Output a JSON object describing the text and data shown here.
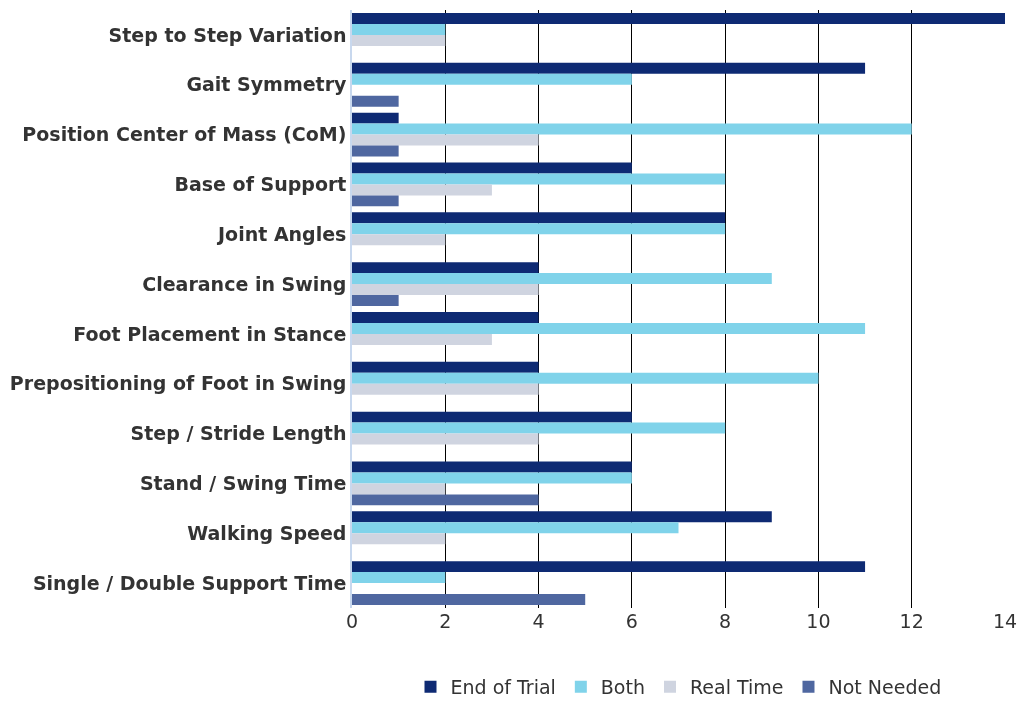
{
  "chart_data": {
    "type": "bar",
    "orientation": "horizontal",
    "categories": [
      "Step to Step Variation",
      "Gait Symmetry",
      "Position Center of Mass (CoM)",
      "Base of Support",
      "Joint Angles",
      "Clearance in Swing",
      "Foot Placement in Stance",
      "Prepositioning of Foot in Swing",
      "Step / Stride Length",
      "Stand / Swing Time",
      "Walking Speed",
      "Single / Double Support Time"
    ],
    "series": [
      {
        "name": "End of Trial",
        "color": "#0e2a73",
        "values": [
          14,
          11,
          1,
          6,
          8,
          4,
          4,
          4,
          6,
          6,
          9,
          11
        ]
      },
      {
        "name": "Both",
        "color": "#80d3ea",
        "values": [
          2,
          6,
          12,
          8,
          8,
          9,
          11,
          10,
          8,
          6,
          7,
          2
        ]
      },
      {
        "name": "Real Time",
        "color": "#cfd4e0",
        "values": [
          2,
          0,
          4,
          3,
          2,
          4,
          3,
          4,
          4,
          2,
          2,
          0
        ]
      },
      {
        "name": "Not Needed",
        "color": "#4f67a0",
        "values": [
          0,
          1,
          1,
          1,
          0,
          1,
          0,
          0,
          0,
          4,
          0,
          5
        ]
      }
    ],
    "xlim": [
      0,
      14
    ],
    "xticks": [
      0,
      2,
      4,
      6,
      8,
      10,
      12,
      14
    ],
    "grid": "x",
    "legend": "bottom"
  }
}
